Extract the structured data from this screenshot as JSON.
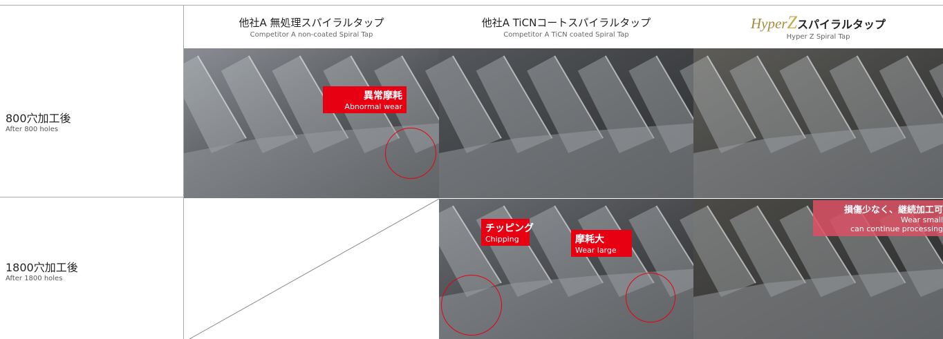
{
  "header": {
    "columns": [
      {
        "title": "他社A 無処理スパイラルタップ",
        "subtitle": "Competitor A non-coated Spiral Tap"
      },
      {
        "title": "他社A TiCNコートスパイラルタップ",
        "subtitle": "Competitor A TiCN coated Spiral Tap"
      },
      {
        "brand": "Hyper",
        "logo": "Z",
        "title": "スパイラルタップ",
        "subtitle": "Hyper Z Spiral Tap"
      }
    ]
  },
  "rows": [
    {
      "label": "800穴加工後",
      "sublabel": "After 800 holes"
    },
    {
      "label": "1800穴加工後",
      "sublabel": "After 1800 holes"
    }
  ],
  "callouts": [
    {
      "title": "異常摩耗",
      "text": "Abnormal wear"
    },
    {
      "title": "チッピング",
      "text": "Chipping"
    },
    {
      "title": "摩耗大",
      "text": "Wear large"
    },
    {
      "title": "損傷少なく、継続加工可",
      "text": "Wear small",
      "text2": "can continue processing"
    }
  ]
}
